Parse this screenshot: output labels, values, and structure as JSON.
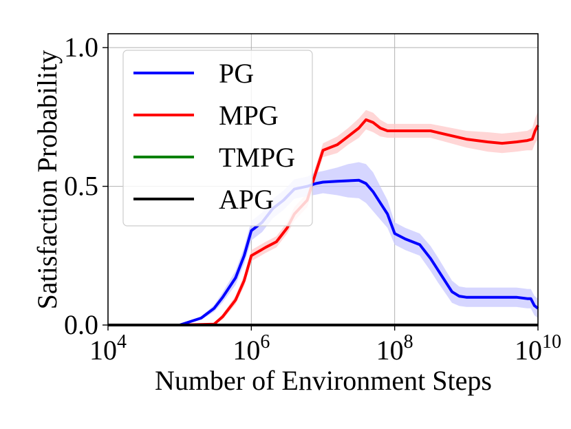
{
  "chart_data": {
    "type": "line",
    "title": "",
    "xlabel": "Number of Environment Steps",
    "ylabel": "Satisfaction Probability",
    "xscale": "log",
    "xlim_exp": [
      4,
      10
    ],
    "ylim": [
      0.0,
      1.05
    ],
    "grid": true,
    "legend_position": "upper-left",
    "x_ticks": [
      {
        "base": "10",
        "exp": "4",
        "value_exp": 4
      },
      {
        "base": "10",
        "exp": "6",
        "value_exp": 6
      },
      {
        "base": "10",
        "exp": "8",
        "value_exp": 8
      },
      {
        "base": "10",
        "exp": "10",
        "value_exp": 10
      }
    ],
    "y_ticks": [
      {
        "label": "0.0",
        "value": 0.0
      },
      {
        "label": "0.5",
        "value": 0.5
      },
      {
        "label": "1.0",
        "value": 1.0
      }
    ],
    "series": [
      {
        "name": "PG",
        "color": "#0000ff",
        "band_color": "#c8c8ff",
        "x_exp": [
          5.0,
          5.3,
          5.48,
          5.6,
          5.78,
          5.9,
          6.0,
          6.15,
          6.3,
          6.45,
          6.6,
          6.78,
          6.9,
          7.0,
          7.2,
          7.35,
          7.5,
          7.6,
          7.7,
          7.8,
          7.9,
          8.0,
          8.15,
          8.35,
          8.5,
          8.6,
          8.8,
          8.9,
          9.0,
          9.2,
          9.4,
          9.7,
          9.85,
          9.9,
          9.95,
          10.0
        ],
        "y": [
          0.0,
          0.025,
          0.06,
          0.1,
          0.17,
          0.25,
          0.34,
          0.37,
          0.42,
          0.45,
          0.49,
          0.5,
          0.51,
          0.515,
          0.518,
          0.52,
          0.522,
          0.51,
          0.48,
          0.44,
          0.4,
          0.33,
          0.31,
          0.29,
          0.24,
          0.2,
          0.12,
          0.104,
          0.1,
          0.1,
          0.1,
          0.1,
          0.095,
          0.095,
          0.07,
          0.06
        ],
        "band": [
          0.0,
          0.006,
          0.012,
          0.018,
          0.025,
          0.03,
          0.035,
          0.035,
          0.035,
          0.035,
          0.035,
          0.035,
          0.04,
          0.04,
          0.05,
          0.06,
          0.065,
          0.07,
          0.07,
          0.06,
          0.05,
          0.04,
          0.04,
          0.04,
          0.045,
          0.045,
          0.04,
          0.035,
          0.035,
          0.035,
          0.035,
          0.035,
          0.035,
          0.035,
          0.035,
          0.035
        ]
      },
      {
        "name": "MPG",
        "color": "#ff0000",
        "band_color": "#ffc8c8",
        "x_exp": [
          5.0,
          5.48,
          5.6,
          5.78,
          5.9,
          6.0,
          6.2,
          6.35,
          6.5,
          6.6,
          6.78,
          6.9,
          7.0,
          7.2,
          7.35,
          7.5,
          7.6,
          7.7,
          7.8,
          7.9,
          8.0,
          8.2,
          8.5,
          9.0,
          9.3,
          9.5,
          9.7,
          9.85,
          9.92,
          9.96,
          10.0
        ],
        "y": [
          0.0,
          0.003,
          0.03,
          0.09,
          0.16,
          0.25,
          0.28,
          0.3,
          0.35,
          0.4,
          0.45,
          0.55,
          0.63,
          0.65,
          0.68,
          0.71,
          0.74,
          0.73,
          0.71,
          0.7,
          0.7,
          0.7,
          0.7,
          0.67,
          0.66,
          0.655,
          0.66,
          0.665,
          0.67,
          0.7,
          0.72
        ],
        "band": [
          0.0,
          0.003,
          0.01,
          0.015,
          0.02,
          0.02,
          0.02,
          0.02,
          0.02,
          0.025,
          0.025,
          0.025,
          0.025,
          0.03,
          0.03,
          0.035,
          0.035,
          0.035,
          0.03,
          0.025,
          0.025,
          0.025,
          0.025,
          0.03,
          0.035,
          0.035,
          0.035,
          0.035,
          0.04,
          0.045,
          0.05
        ]
      },
      {
        "name": "TMPG",
        "color": "#008000",
        "band_color": "#c8e6c8",
        "x_exp": [
          4.0,
          10.0
        ],
        "y": [
          0.0,
          0.0
        ],
        "band": [
          0.0,
          0.0
        ]
      },
      {
        "name": "APG",
        "color": "#000000",
        "band_color": "#cccccc",
        "x_exp": [
          4.0,
          10.0
        ],
        "y": [
          0.0,
          0.0
        ],
        "band": [
          0.0,
          0.0
        ]
      }
    ]
  }
}
